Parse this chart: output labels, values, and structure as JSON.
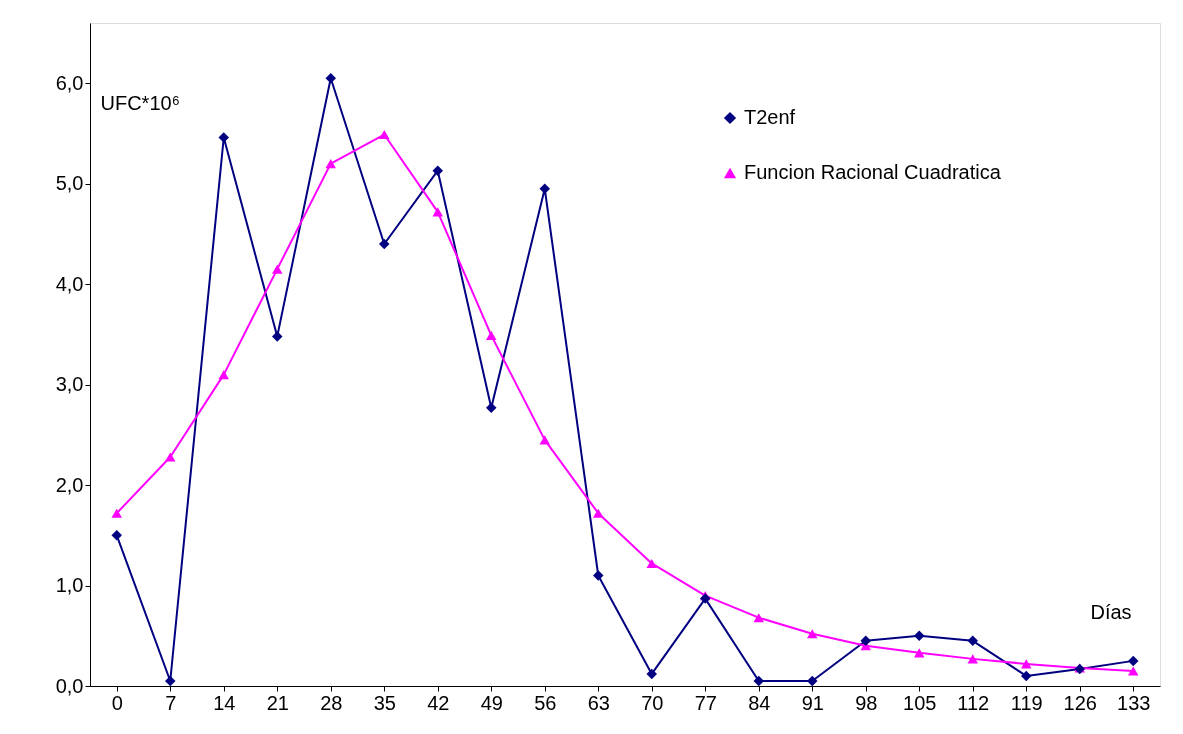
{
  "chart_data": {
    "type": "line",
    "xlabel": "Días",
    "ylabel": "UFC*10⁶",
    "categories": [
      "0",
      "7",
      "14",
      "21",
      "28",
      "35",
      "42",
      "49",
      "56",
      "63",
      "70",
      "77",
      "84",
      "91",
      "98",
      "105",
      "112",
      "119",
      "126",
      "133"
    ],
    "series": [
      {
        "name": "T2enf",
        "color": "#000080",
        "marker": "diamond",
        "values": [
          1.5,
          0.05,
          5.46,
          3.48,
          6.05,
          4.4,
          5.13,
          2.77,
          4.95,
          1.1,
          0.12,
          0.87,
          0.05,
          0.05,
          0.45,
          0.5,
          0.45,
          0.1,
          0.17,
          0.25
        ]
      },
      {
        "name": "Funcion Racional Cuadratica",
        "color": "#ff00ff",
        "marker": "triangle",
        "values": [
          1.72,
          2.28,
          3.1,
          4.15,
          5.2,
          5.49,
          4.72,
          3.49,
          2.45,
          1.72,
          1.22,
          0.9,
          0.68,
          0.52,
          0.4,
          0.33,
          0.27,
          0.22,
          0.18,
          0.15
        ]
      }
    ],
    "ylim": [
      0,
      6.6
    ],
    "yticks": [
      {
        "value": 0,
        "label": "0,0"
      },
      {
        "value": 1,
        "label": "1,0"
      },
      {
        "value": 2,
        "label": "2,0"
      },
      {
        "value": 3,
        "label": "3,0"
      },
      {
        "value": 4,
        "label": "4,0"
      },
      {
        "value": 5,
        "label": "5,0"
      },
      {
        "value": 6,
        "label": "6,0"
      }
    ],
    "grid": false,
    "legend": "top right",
    "line_style": "solid"
  }
}
